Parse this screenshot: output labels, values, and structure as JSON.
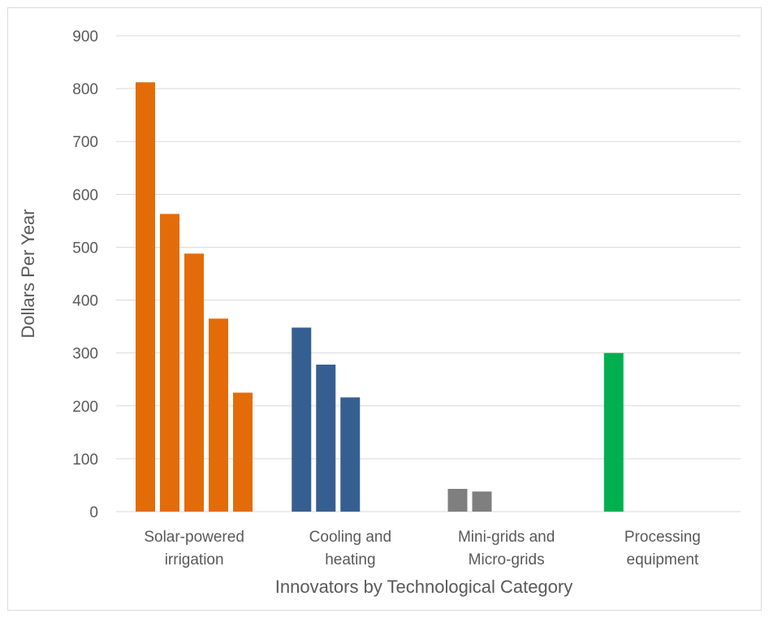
{
  "chart_data": {
    "type": "bar",
    "title": "",
    "xlabel": "Innovators by Technological Category",
    "ylabel": "Dollars Per Year",
    "ylim": [
      0,
      900
    ],
    "yticks": [
      0,
      100,
      200,
      300,
      400,
      500,
      600,
      700,
      800,
      900
    ],
    "grid": true,
    "legend": "none",
    "categories": [
      {
        "label_lines": [
          "Solar-powered",
          "irrigation"
        ],
        "color": "#e36c09",
        "values": [
          812,
          563,
          488,
          365,
          225
        ]
      },
      {
        "label_lines": [
          "Cooling and",
          "heating"
        ],
        "color": "#365f91",
        "values": [
          348,
          278,
          216
        ]
      },
      {
        "label_lines": [
          "Mini-grids and",
          "Micro-grids"
        ],
        "color": "#7f7f7f",
        "values": [
          43,
          38
        ]
      },
      {
        "label_lines": [
          "Processing",
          "equipment"
        ],
        "color": "#00b050",
        "values": [
          300
        ]
      }
    ],
    "colors": {
      "gridline": "#d9d9d9",
      "text": "#595959"
    }
  }
}
